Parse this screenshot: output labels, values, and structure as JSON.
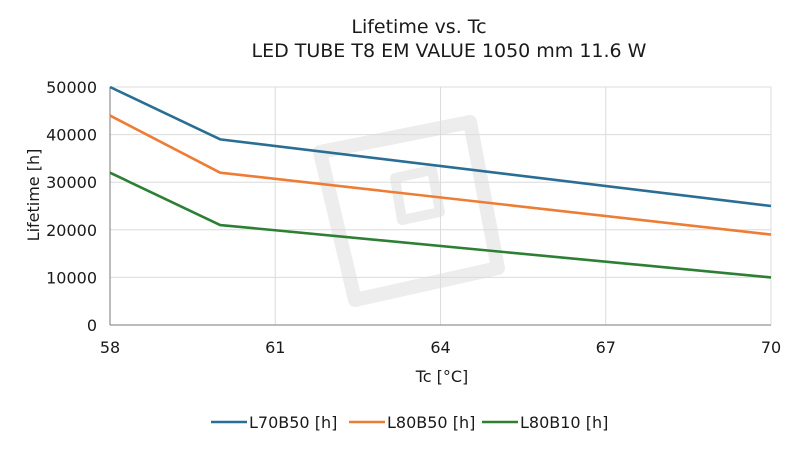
{
  "chart_data": {
    "type": "line",
    "title": "Lifetime vs. Tc",
    "subtitle": "LED TUBE T8 EM VALUE 1050 mm 11.6 W",
    "xlabel": "Tc [°C]",
    "ylabel": "Lifetime [h]",
    "xlim": [
      58,
      70
    ],
    "ylim": [
      0,
      50000
    ],
    "xticks": [
      58,
      61,
      64,
      67,
      70
    ],
    "yticks": [
      0,
      10000,
      20000,
      30000,
      40000,
      50000
    ],
    "grid": true,
    "legend_position": "bottom",
    "series": [
      {
        "name": "L70B50 [h]",
        "color": "#2a6e94",
        "points": [
          [
            58,
            50000
          ],
          [
            60,
            39000
          ],
          [
            70,
            25000
          ]
        ]
      },
      {
        "name": "L80B50 [h]",
        "color": "#ee7c34",
        "points": [
          [
            58,
            44000
          ],
          [
            60,
            32000
          ],
          [
            70,
            19000
          ]
        ]
      },
      {
        "name": "L80B10 [h]",
        "color": "#2c7f33",
        "points": [
          [
            58,
            32000
          ],
          [
            60,
            21000
          ],
          [
            70,
            10000
          ]
        ]
      }
    ]
  }
}
